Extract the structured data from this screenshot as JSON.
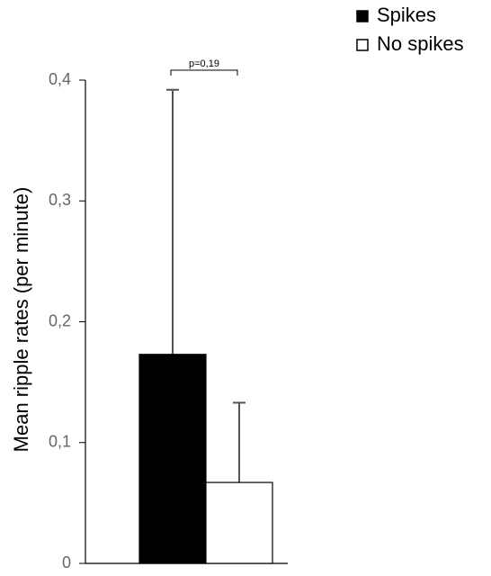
{
  "chart_data": {
    "type": "bar",
    "y_label": "Mean ripple rates (per minute)",
    "annotation": "p=0,19",
    "categories": [
      null
    ],
    "series": [
      {
        "name": "Spikes",
        "color": "#000000",
        "values": [
          0.173
        ],
        "errors": [
          0.219
        ]
      },
      {
        "name": "No spikes",
        "color": "#ffffff",
        "values": [
          0.067
        ],
        "errors": [
          0.066
        ]
      }
    ],
    "ylim": [
      0,
      0.4
    ],
    "yticks": [
      0,
      {
        "value": 0.1,
        "label": "0,1"
      },
      {
        "value": 0.2,
        "label": "0,2"
      },
      {
        "value": 0.3,
        "label": "0,3"
      },
      {
        "value": 0.4,
        "label": "0,4"
      }
    ],
    "grid": false,
    "legend": "top-right"
  }
}
